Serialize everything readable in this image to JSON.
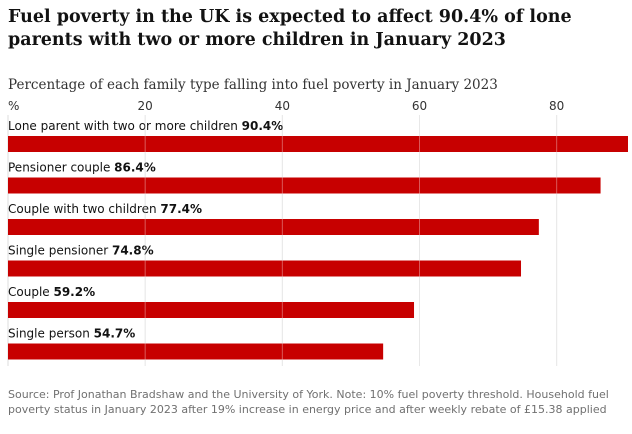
{
  "chart_data": {
    "type": "bar",
    "orientation": "horizontal",
    "title": "Fuel poverty in the UK is expected to affect 90.4% of lone parents with two or more children in January 2023",
    "subtitle": "Percentage of each family type falling into fuel poverty in January 2023",
    "axis_unit_label": "%",
    "ticks": [
      20,
      40,
      60,
      80
    ],
    "xlim": [
      0,
      90.4
    ],
    "grid": true,
    "bar_color": "#c70000",
    "categories": [
      "Lone parent with two or more children",
      "Pensioner couple",
      "Couple with two children",
      "Single pensioner",
      "Couple",
      "Single person"
    ],
    "values": [
      90.4,
      86.4,
      77.4,
      74.8,
      59.2,
      54.7
    ],
    "value_labels": [
      "90.4%",
      "86.4%",
      "77.4%",
      "74.8%",
      "59.2%",
      "54.7%"
    ]
  },
  "footer": {
    "source": "Source: Prof Jonathan Bradshaw and the University of York. Note: 10% fuel poverty threshold. Household fuel poverty status in January 2023 after 19% increase in energy price and after weekly rebate of £15.38 applied"
  }
}
